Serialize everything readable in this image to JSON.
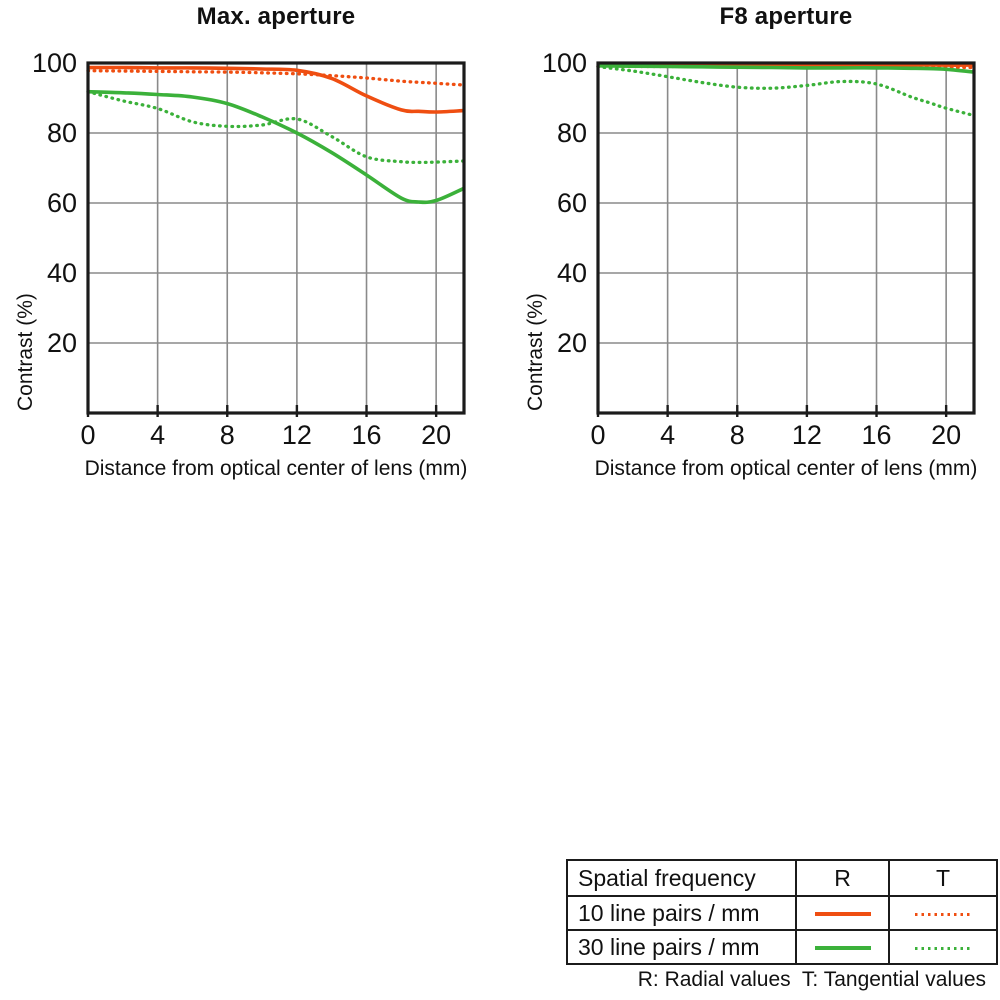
{
  "colors": {
    "orange": "#ef4e11",
    "green": "#3bb13a",
    "grid": "#8a8a8a",
    "axis": "#1b1b1b",
    "text": "#111111",
    "background": "#ffffff"
  },
  "axes": {
    "xlabel": "Distance from optical center of lens (mm)",
    "ylabel": "Contrast (%)",
    "xticks": [
      0,
      4,
      8,
      12,
      16,
      20
    ],
    "yticks": [
      100,
      80,
      60,
      40,
      20
    ],
    "xlim": [
      0,
      21.6
    ],
    "ylim": [
      0,
      100
    ],
    "grid": true
  },
  "chart_data": [
    {
      "type": "line",
      "title": "Max. aperture",
      "x": [
        0,
        2,
        4,
        6,
        8,
        10,
        12,
        14,
        16,
        18,
        19,
        20,
        21.6
      ],
      "series": [
        {
          "name": "10 line pairs / mm — R (radial)",
          "key": "R10",
          "color": "orange",
          "dash": "solid",
          "values": [
            98.7,
            98.7,
            98.6,
            98.6,
            98.5,
            98.3,
            97.9,
            95.6,
            90.6,
            86.6,
            86.2,
            86.0,
            86.4
          ]
        },
        {
          "name": "10 line pairs / mm — T (tangential)",
          "key": "T10",
          "color": "orange",
          "dash": "dotted",
          "values": [
            97.8,
            97.7,
            97.6,
            97.5,
            97.4,
            97.2,
            96.9,
            96.4,
            95.7,
            94.8,
            94.5,
            94.2,
            93.7
          ]
        },
        {
          "name": "30 line pairs / mm — R (radial)",
          "key": "R30",
          "color": "green",
          "dash": "solid",
          "values": [
            91.8,
            91.5,
            91.0,
            90.3,
            88.4,
            84.6,
            80.0,
            74.4,
            68.0,
            61.4,
            60.3,
            60.7,
            64.2
          ]
        },
        {
          "name": "30 line pairs / mm — T (tangential)",
          "key": "T30",
          "color": "green",
          "dash": "dotted",
          "values": [
            91.8,
            89.2,
            87.0,
            83.2,
            81.9,
            82.3,
            84.0,
            79.0,
            73.2,
            71.8,
            71.6,
            71.7,
            72.0
          ]
        }
      ]
    },
    {
      "type": "line",
      "title": "F8 aperture",
      "x": [
        0,
        2,
        4,
        6,
        8,
        10,
        12,
        14,
        16,
        18,
        19,
        20,
        21.6
      ],
      "series": [
        {
          "name": "10 line pairs / mm — R (radial)",
          "key": "R10",
          "color": "orange",
          "dash": "solid",
          "values": [
            99.6,
            99.6,
            99.6,
            99.6,
            99.6,
            99.5,
            99.5,
            99.5,
            99.5,
            99.5,
            99.5,
            99.4,
            99.4
          ]
        },
        {
          "name": "10 line pairs / mm — T (tangential)",
          "key": "T10",
          "color": "orange",
          "dash": "dotted",
          "values": [
            99.0,
            99.0,
            99.0,
            99.0,
            98.9,
            98.9,
            98.9,
            98.9,
            98.9,
            98.8,
            98.8,
            98.8,
            98.7
          ]
        },
        {
          "name": "30 line pairs / mm — R (radial)",
          "key": "R30",
          "color": "green",
          "dash": "solid",
          "values": [
            99.2,
            99.1,
            99.0,
            98.9,
            98.8,
            98.7,
            98.6,
            98.6,
            98.6,
            98.5,
            98.4,
            98.2,
            97.4
          ]
        },
        {
          "name": "30 line pairs / mm — T (tangential)",
          "key": "T30",
          "color": "green",
          "dash": "dotted",
          "values": [
            99.0,
            97.7,
            96.1,
            94.4,
            93.1,
            92.8,
            93.6,
            94.7,
            94.0,
            90.3,
            88.7,
            87.1,
            85.0
          ]
        }
      ]
    }
  ],
  "legend": {
    "header": [
      "Spatial frequency",
      "R",
      "T"
    ],
    "rows": [
      {
        "label": "10 line pairs / mm",
        "color": "orange",
        "r_style": "solid",
        "t_style": "dotted"
      },
      {
        "label": "30 line pairs / mm",
        "color": "green",
        "r_style": "solid",
        "t_style": "dotted"
      }
    ],
    "footnote": "R: Radial values  T: Tangential values"
  }
}
